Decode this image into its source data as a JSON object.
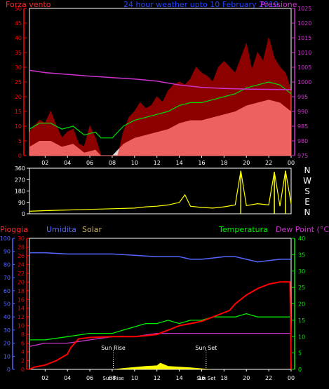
{
  "panel_top": {
    "title": "24 hour weather upto 10 February 2019",
    "left_label": "Forza vento",
    "right_label": "Pressione",
    "left_ticks": [
      "0",
      "5",
      "10",
      "15",
      "20",
      "25",
      "30",
      "35",
      "40",
      "45",
      "50"
    ],
    "right_ticks": [
      "975",
      "980",
      "985",
      "990",
      "995",
      "1000",
      "1005",
      "1010",
      "1015",
      "1020",
      "1025"
    ],
    "x_ticks": [
      "02",
      "04",
      "06",
      "08",
      "10",
      "12",
      "14",
      "16",
      "18",
      "20",
      "22",
      "00"
    ]
  },
  "panel_dir": {
    "left_ticks": [
      "0",
      "90",
      "180",
      "270",
      "360"
    ],
    "compass": [
      "N",
      "W",
      "S",
      "E",
      "N"
    ]
  },
  "panel_bottom": {
    "labels": {
      "pioggia": "Pioggia",
      "umidita": "Umidita",
      "solar": "Solar",
      "temperatura": "Temperatura",
      "dewpoint": "Dew Point (°C)"
    },
    "left1_ticks": [
      "0",
      "10",
      "20",
      "30",
      "40",
      "50",
      "60",
      "70",
      "80",
      "90",
      "100"
    ],
    "left2_ticks": [
      "0",
      "2",
      "4",
      "6",
      "8",
      "10",
      "12",
      "14",
      "16",
      "18",
      "20",
      "22",
      "24",
      "26",
      "28",
      "30"
    ],
    "right_ticks": [
      "0",
      "5",
      "10",
      "15",
      "20",
      "25",
      "30",
      "35",
      "40"
    ],
    "x_ticks": [
      "02",
      "04",
      "06",
      "08",
      "10",
      "12",
      "14",
      "16",
      "18",
      "20",
      "22",
      "00"
    ],
    "annotations": {
      "sunrise": "Sun Rise",
      "sunset": "Sun Set",
      "sunrise_small": "Sun Rise",
      "sunset_small": "Sun Set"
    }
  },
  "colors": {
    "wind": "#ff0000",
    "gust_band": "#ffffff",
    "avg_wind": "#00dd00",
    "pressure": "#cc33cc",
    "direction": "#ffff00",
    "humidity": "#5566ff",
    "temperature": "#00ee00",
    "dewpoint": "#cc33cc",
    "rain": "#ff0000",
    "solar": "#ffff00"
  },
  "chart_data": [
    {
      "type": "line",
      "title": "24 hour weather upto 10 February 2019",
      "x_unit": "hour",
      "xlim": [
        0.6,
        24
      ],
      "series": [
        {
          "name": "Forza vento",
          "axis": "left",
          "ylim": [
            0,
            50
          ],
          "x": [
            0.6,
            1,
            1.5,
            2,
            2.5,
            3,
            3.5,
            4,
            4.5,
            5,
            5.5,
            6,
            6.5,
            7,
            7.5,
            8,
            8.5,
            9,
            9.5,
            10,
            10.5,
            11,
            11.5,
            12,
            12.5,
            13,
            13.5,
            14,
            14.5,
            15,
            15.5,
            16,
            16.5,
            17,
            17.5,
            18,
            18.5,
            19,
            19.5,
            20,
            20.5,
            21,
            21.5,
            22,
            22.5,
            23,
            23.5,
            24
          ],
          "values": [
            8,
            10,
            12,
            11,
            15,
            10,
            6,
            8,
            9,
            4,
            3,
            10,
            6,
            0,
            0,
            0,
            0,
            8,
            13,
            15,
            18,
            16,
            17,
            20,
            18,
            22,
            24,
            25,
            24,
            26,
            30,
            28,
            27,
            25,
            30,
            32,
            30,
            28,
            33,
            38,
            29,
            35,
            32,
            40,
            33,
            30,
            28,
            22
          ]
        },
        {
          "name": "",
          "axis": "left",
          "ylim": [
            0,
            50
          ],
          "x": [
            0.6,
            1.5,
            2.5,
            3.5,
            4.5,
            5.5,
            6.5,
            7,
            8,
            9,
            10,
            11,
            12,
            13,
            14,
            15,
            16,
            17,
            18,
            19,
            20,
            21,
            22,
            23,
            24
          ],
          "values": [
            3,
            5,
            5,
            3,
            4,
            1,
            2,
            0,
            0,
            4,
            6,
            7,
            8,
            9,
            11,
            12,
            12,
            13,
            14,
            15,
            17,
            18,
            19,
            18,
            15
          ]
        },
        {
          "name": "Pressione",
          "axis": "right",
          "ylim": [
            975,
            1025
          ],
          "x": [
            0.6,
            2,
            4,
            6,
            8,
            10,
            12,
            14,
            16,
            18,
            20,
            22,
            24
          ],
          "values": [
            1004,
            1003.2,
            1002.6,
            1002,
            1001.5,
            1001,
            1000.3,
            999,
            998.2,
            997.8,
            997.6,
            997.5,
            997.4
          ]
        }
      ]
    },
    {
      "type": "scatter",
      "title": "",
      "x_unit": "hour",
      "ylim": [
        0,
        360
      ],
      "series": [
        {
          "name": "",
          "x": [
            0.6,
            2,
            4,
            6,
            8,
            10,
            11,
            12,
            13,
            14,
            14.5,
            15,
            16,
            17,
            18,
            19,
            19.5,
            20,
            21,
            22,
            22.5,
            23,
            23.5,
            24
          ],
          "values": [
            20,
            25,
            30,
            35,
            40,
            45,
            55,
            60,
            70,
            90,
            150,
            60,
            50,
            45,
            55,
            70,
            340,
            65,
            80,
            70,
            330,
            60,
            340,
            80
          ]
        }
      ]
    },
    {
      "type": "line",
      "title": "",
      "x_unit": "hour",
      "series": [
        {
          "name": "Umidita",
          "axis": "left1",
          "ylim": [
            0,
            100
          ],
          "x": [
            0.6,
            2,
            4,
            6,
            8,
            10,
            12,
            14,
            15,
            16,
            17,
            18,
            19,
            20,
            21,
            22,
            23,
            24
          ],
          "values": [
            89,
            89,
            88,
            88,
            88,
            87,
            86,
            86,
            84,
            84,
            85,
            86,
            86,
            84,
            82,
            83,
            84,
            84
          ]
        },
        {
          "name": "Temperatura",
          "axis": "right",
          "ylim": [
            0,
            40
          ],
          "x": [
            0.6,
            2,
            4,
            6,
            8,
            9,
            10,
            11,
            12,
            13,
            14,
            15,
            16,
            17,
            18,
            19,
            20,
            21,
            22,
            23,
            24
          ],
          "values": [
            9,
            9,
            10,
            11,
            11,
            12,
            13,
            14,
            14,
            15,
            14,
            15,
            15,
            16,
            16,
            16,
            17,
            16,
            16,
            16,
            16
          ]
        },
        {
          "name": "Dew Point (°C)",
          "axis": "right",
          "ylim": [
            0,
            40
          ],
          "x": [
            0.6,
            2,
            4,
            6,
            8,
            10,
            12,
            14,
            16,
            18,
            20,
            22,
            24
          ],
          "values": [
            7,
            8,
            8,
            9,
            10,
            10,
            11,
            11,
            11,
            11,
            11,
            11,
            11
          ]
        },
        {
          "name": "Pioggia",
          "axis": "left2",
          "ylim": [
            0,
            30
          ],
          "x": [
            0.6,
            1,
            2,
            3,
            4,
            4.3,
            5,
            6,
            8,
            10,
            11,
            12,
            13,
            14,
            15,
            16,
            17,
            18,
            18.5,
            19,
            20,
            21,
            22,
            23,
            23.9,
            24
          ],
          "values": [
            0,
            0.5,
            1,
            2,
            3.5,
            5,
            7,
            7.3,
            7.5,
            7.5,
            7.7,
            8,
            9,
            10,
            10.5,
            11,
            12,
            13,
            13.5,
            15,
            17,
            18.5,
            19.5,
            20,
            20,
            0
          ]
        },
        {
          "name": "Solar",
          "axis": "right",
          "ylim": [
            0,
            40
          ],
          "x": [
            0.6,
            6,
            8,
            9,
            10,
            11,
            12,
            12.3,
            13,
            14,
            15,
            16,
            17,
            24
          ],
          "values": [
            0,
            0,
            0,
            0.4,
            0.7,
            1,
            1.2,
            2,
            1,
            0.8,
            0.6,
            0.3,
            0,
            0
          ]
        }
      ]
    }
  ]
}
